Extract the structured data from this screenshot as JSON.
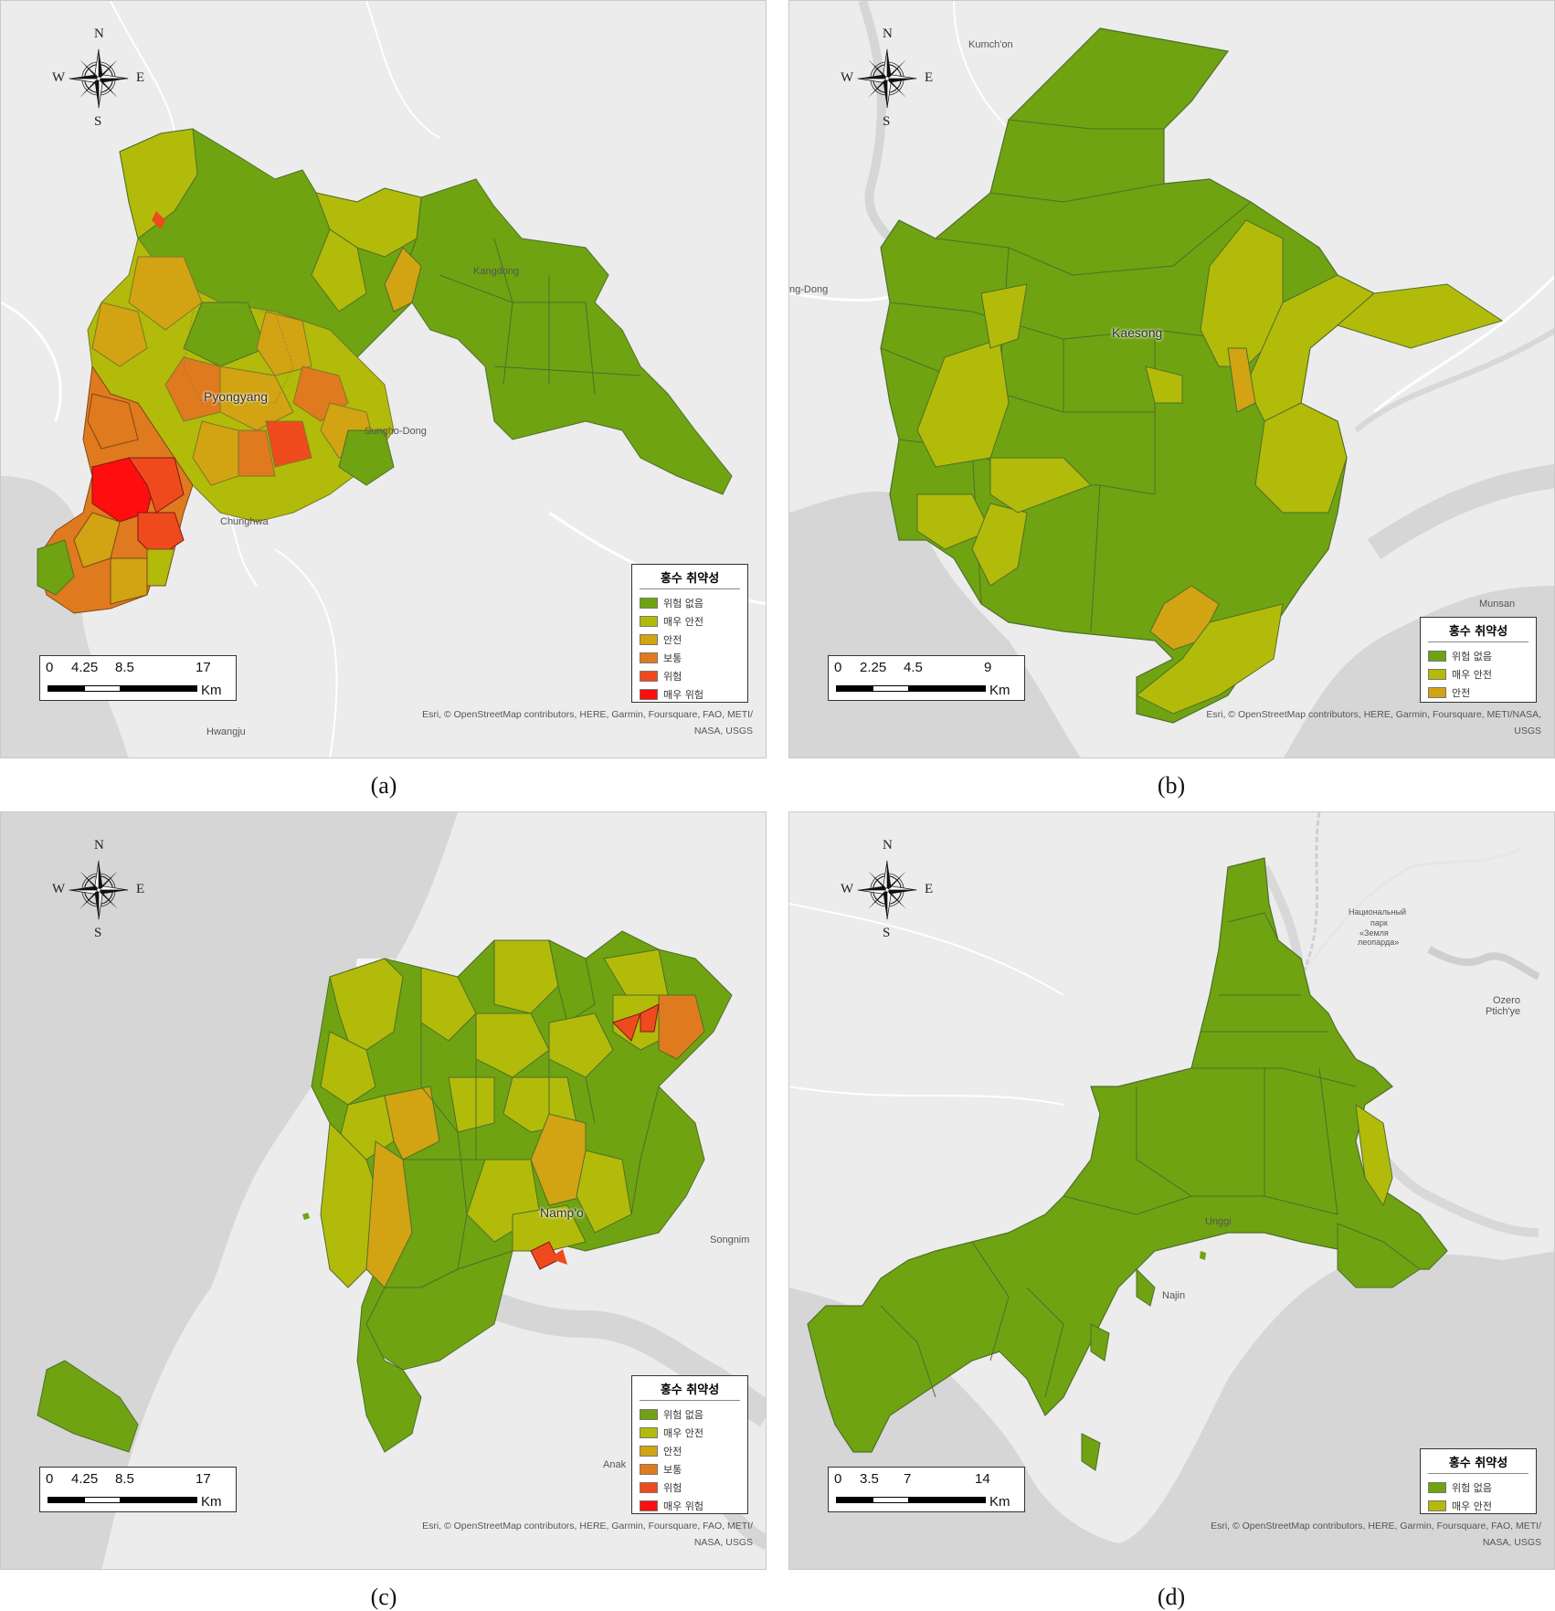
{
  "legend_title": "홍수 취약성",
  "classes": {
    "none": {
      "label": "위험 없음",
      "color": "#6fa312"
    },
    "very_safe": {
      "label": "매우 안전",
      "color": "#b2bb0a"
    },
    "safe": {
      "label": "안전",
      "color": "#d2a313"
    },
    "normal": {
      "label": "보통",
      "color": "#e07a1e"
    },
    "danger": {
      "label": "위험",
      "color": "#ef4a1e"
    },
    "very_danger": {
      "label": "매우 위험",
      "color": "#ff0e0e"
    }
  },
  "compass": {
    "n": "N",
    "s": "S",
    "e": "E",
    "w": "W"
  },
  "attribution_1": "Esri, © OpenStreetMap contributors, HERE, Garmin, Foursquare, FAO, METI/",
  "attribution_1b": "Esri, © OpenStreetMap contributors, HERE, Garmin, Foursquare, METI/NASA,",
  "attribution_2": "NASA, USGS",
  "attribution_2b": "USGS",
  "unit": "Km",
  "panels": {
    "a": {
      "caption": "(a)",
      "city": "Pyongyang",
      "places": [
        "Kangdong",
        "Sungho-Dong",
        "Chunghwa",
        "Hwangju"
      ],
      "scale_ticks": [
        "0",
        "4.25",
        "8.5",
        "17"
      ]
    },
    "b": {
      "caption": "(b)",
      "city": "Kaesong",
      "places": [
        "Kumch'on",
        "ng-Dong",
        "Munsan"
      ],
      "scale_ticks": [
        "0",
        "2.25",
        "4.5",
        "9"
      ]
    },
    "c": {
      "caption": "(c)",
      "city": "Namp'o",
      "places": [
        "Songnim",
        "Anak"
      ],
      "scale_ticks": [
        "0",
        "4.25",
        "8.5",
        "17"
      ]
    },
    "d": {
      "caption": "(d)",
      "places": [
        "Unggi",
        "Najin",
        "Национальный",
        "парк",
        "«Земля",
        "леопарда»",
        "Ozero",
        "Ptich'ye"
      ],
      "scale_ticks": [
        "0",
        "3.5",
        "7",
        "14"
      ]
    }
  }
}
